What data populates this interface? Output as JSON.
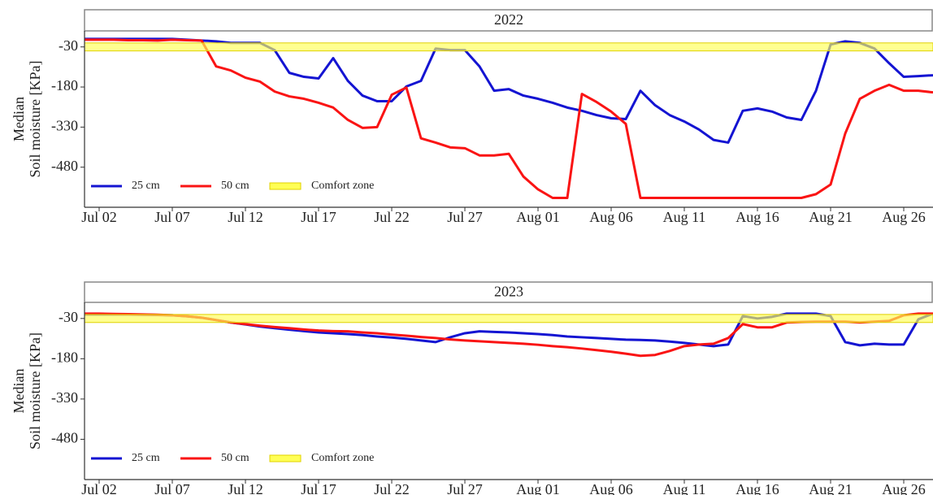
{
  "chart_data": [
    {
      "type": "line",
      "title": "2022",
      "ylabel": [
        "Median",
        "Soil moisture [KPa]"
      ],
      "categories": [
        null,
        "Jul 02",
        null,
        null,
        null,
        null,
        "Jul 07",
        null,
        null,
        null,
        null,
        "Jul 12",
        null,
        null,
        null,
        null,
        "Jul 17",
        null,
        null,
        null,
        null,
        "Jul 22",
        null,
        null,
        null,
        null,
        "Jul 27",
        null,
        null,
        null,
        null,
        "Aug 01",
        null,
        null,
        null,
        null,
        "Aug 06",
        null,
        null,
        null,
        null,
        "Aug 11",
        null,
        null,
        null,
        null,
        "Aug 16",
        null,
        null,
        null,
        null,
        "Aug 21",
        null,
        null,
        null,
        null,
        "Aug 26",
        null,
        null
      ],
      "series": [
        {
          "name": "25 cm",
          "color": "#1414d2",
          "values": [
            0,
            0,
            0,
            0,
            0,
            0,
            0,
            -3,
            -6,
            -9,
            -15,
            -15,
            -15,
            -42,
            -127,
            -142,
            -148,
            -72,
            -157,
            -212,
            -233,
            -233,
            -178,
            -157,
            -36,
            -42,
            -42,
            -103,
            -194,
            -188,
            -212,
            -224,
            -239,
            -257,
            -269,
            -285,
            -297,
            -300,
            -194,
            -248,
            -285,
            -309,
            -339,
            -378,
            -388,
            -269,
            -260,
            -272,
            -294,
            -303,
            -194,
            -21,
            -9,
            -15,
            -36,
            -91,
            -142,
            -139,
            -136
          ]
        },
        {
          "name": "50 cm",
          "color": "#fa1414",
          "values": [
            -3,
            -3,
            -3,
            -5,
            -5,
            -6,
            -3,
            -5,
            -6,
            -103,
            -118,
            -145,
            -160,
            -197,
            -215,
            -224,
            -239,
            -257,
            -303,
            -333,
            -330,
            -209,
            -182,
            -372,
            -388,
            -406,
            -409,
            -436,
            -436,
            -430,
            -515,
            -563,
            -595,
            -595,
            -206,
            -236,
            -272,
            -318,
            -595,
            -595,
            -595,
            -595,
            -595,
            -595,
            -595,
            -595,
            -595,
            -595,
            -595,
            -595,
            -581,
            -545,
            -354,
            -224,
            -194,
            -172,
            -194,
            -194,
            -200
          ]
        }
      ],
      "bands": [
        {
          "name": "Comfort zone",
          "color": "#ffff55",
          "range": [
            -45,
            -15
          ]
        }
      ],
      "ylim": [
        -630,
        30
      ],
      "yticks": [
        -30,
        -180,
        -330,
        -480
      ],
      "legend": "lower left"
    },
    {
      "type": "line",
      "title": "2023",
      "ylabel": [
        "Median",
        "Soil moisture [KPa]"
      ],
      "categories": [
        null,
        "Jul 02",
        null,
        null,
        null,
        null,
        "Jul 07",
        null,
        null,
        null,
        null,
        "Jul 12",
        null,
        null,
        null,
        null,
        "Jul 17",
        null,
        null,
        null,
        null,
        "Jul 22",
        null,
        null,
        null,
        null,
        "Jul 27",
        null,
        null,
        null,
        null,
        "Aug 01",
        null,
        null,
        null,
        null,
        "Aug 06",
        null,
        null,
        null,
        null,
        "Aug 11",
        null,
        null,
        null,
        null,
        "Aug 16",
        null,
        null,
        null,
        null,
        "Aug 21",
        null,
        null,
        null,
        null,
        "Aug 26",
        null,
        null
      ],
      "series": [
        {
          "name": "25 cm",
          "color": "#1414d2",
          "values": [
            -15,
            -15,
            -15,
            -15,
            -16,
            -17,
            -18,
            -22,
            -27,
            -36,
            -45,
            -52,
            -60,
            -66,
            -72,
            -77,
            -82,
            -85,
            -88,
            -92,
            -97,
            -101,
            -106,
            -112,
            -118,
            -100,
            -85,
            -78,
            -80,
            -82,
            -85,
            -88,
            -92,
            -97,
            -100,
            -103,
            -106,
            -109,
            -110,
            -112,
            -116,
            -121,
            -127,
            -133,
            -127,
            -21,
            -30,
            -24,
            -12,
            -12,
            -12,
            -21,
            -118,
            -130,
            -124,
            -127,
            -127,
            -33,
            -12
          ]
        },
        {
          "name": "50 cm",
          "color": "#fa1414",
          "values": [
            -12,
            -12,
            -13,
            -14,
            -15,
            -16,
            -18,
            -22,
            -27,
            -36,
            -45,
            -51,
            -57,
            -62,
            -66,
            -71,
            -75,
            -77,
            -78,
            -82,
            -85,
            -90,
            -94,
            -99,
            -103,
            -108,
            -112,
            -115,
            -118,
            -121,
            -124,
            -128,
            -133,
            -137,
            -142,
            -148,
            -154,
            -161,
            -169,
            -166,
            -151,
            -133,
            -127,
            -124,
            -103,
            -51,
            -63,
            -63,
            -45,
            -43,
            -42,
            -42,
            -42,
            -45,
            -42,
            -39,
            -18,
            -12,
            -12
          ]
        }
      ],
      "bands": [
        {
          "name": "Comfort zone",
          "color": "#ffff55",
          "range": [
            -45,
            -15
          ]
        }
      ],
      "ylim": [
        -630,
        30
      ],
      "yticks": [
        -30,
        -180,
        -330,
        -480
      ],
      "legend": "lower left"
    }
  ]
}
